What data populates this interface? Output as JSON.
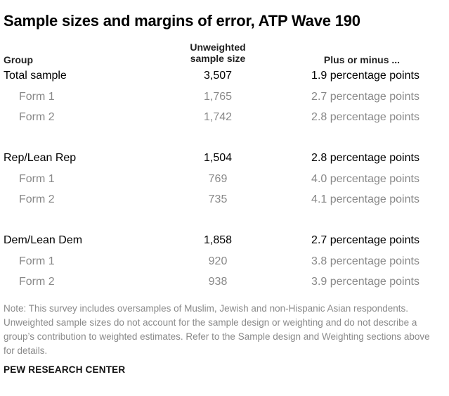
{
  "title": "Sample sizes and margins of error, ATP Wave 190",
  "headers": {
    "group": "Group",
    "sample_size_line1": "Unweighted",
    "sample_size_line2": "sample size",
    "margin": "Plus or minus ..."
  },
  "rows": [
    {
      "group": "Total sample",
      "n": "3,507",
      "moe": "1.9 percentage points"
    },
    {
      "group": "Form 1",
      "n": "1,765",
      "moe": "2.7 percentage points"
    },
    {
      "group": "Form 2",
      "n": "1,742",
      "moe": "2.8 percentage points"
    },
    {
      "group": "Rep/Lean Rep",
      "n": "1,504",
      "moe": "2.8 percentage points"
    },
    {
      "group": "Form 1",
      "n": "769",
      "moe": "4.0 percentage points"
    },
    {
      "group": "Form 2",
      "n": "735",
      "moe": "4.1 percentage points"
    },
    {
      "group": "Dem/Lean Dem",
      "n": "1,858",
      "moe": "2.7 percentage points"
    },
    {
      "group": "Form 1",
      "n": "920",
      "moe": "3.8 percentage points"
    },
    {
      "group": "Form 2",
      "n": "938",
      "moe": "3.9 percentage points"
    }
  ],
  "note": "Note: This survey includes oversamples of Muslim, Jewish and non-Hispanic Asian respondents. Unweighted sample sizes do not account for the sample design or weighting and do not describe a group’s contribution to weighted estimates. Refer to the Sample design and Weighting sections above for details.",
  "source": "PEW RESEARCH CENTER"
}
